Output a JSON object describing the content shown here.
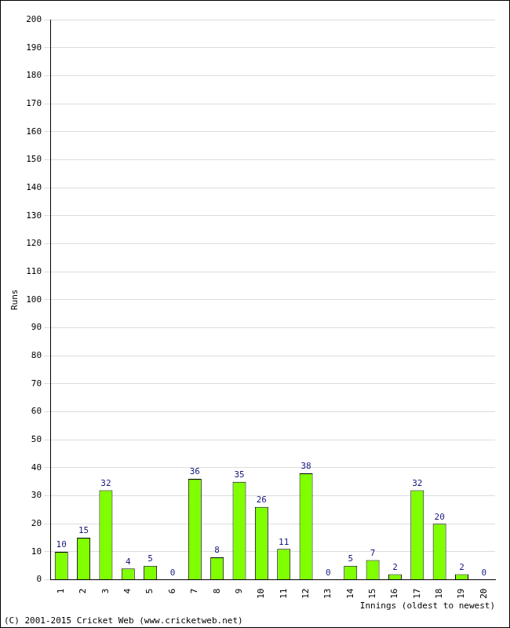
{
  "chart_data": {
    "type": "bar",
    "categories": [
      "1",
      "2",
      "3",
      "4",
      "5",
      "6",
      "7",
      "8",
      "9",
      "10",
      "11",
      "12",
      "13",
      "14",
      "15",
      "16",
      "17",
      "18",
      "19",
      "20"
    ],
    "values": [
      10,
      15,
      32,
      4,
      5,
      0,
      36,
      8,
      35,
      26,
      11,
      38,
      0,
      5,
      7,
      2,
      32,
      20,
      2,
      0
    ],
    "color": "#80ff00",
    "x_label": "Innings (oldest to newest)",
    "y_label": "Runs",
    "annotations": [
      "(C) 2001-2015 Cricket Web (www.cricketweb.net)"
    ],
    "ylim": [
      0,
      200
    ],
    "yticks": [
      0,
      10,
      20,
      30,
      40,
      50,
      60,
      70,
      80,
      90,
      100,
      110,
      120,
      130,
      140,
      150,
      160,
      170,
      180,
      190,
      200
    ],
    "grid": true,
    "data_labels": true
  }
}
